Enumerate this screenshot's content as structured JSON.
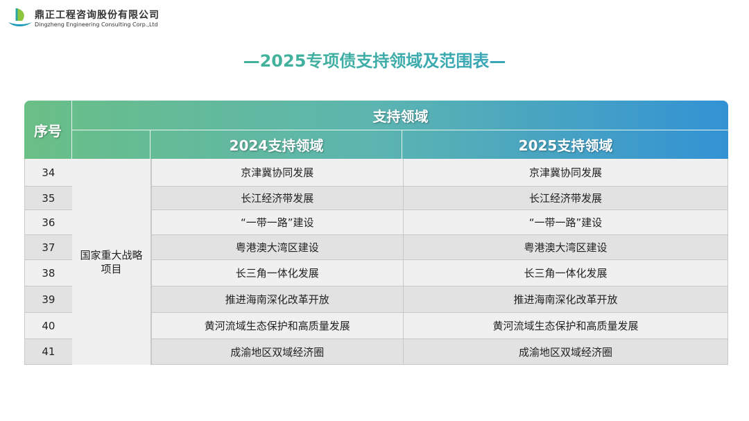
{
  "logo": {
    "name_cn": "鼎正工程咨询股份有限公司",
    "name_en": "Dingzheng Engineering Consulting Corp.,Ltd"
  },
  "title": "—2025专项债支持领域及范围表—",
  "table": {
    "header": {
      "index": "序号",
      "group": "支持领域",
      "col2024": "2024支持领域",
      "col2025": "2025支持领域"
    },
    "category": "国家重大战略项目",
    "rows": [
      {
        "no": "34",
        "y2024": "京津冀协同发展",
        "y2025": "京津冀协同发展"
      },
      {
        "no": "35",
        "y2024": "长江经济带发展",
        "y2025": "长江经济带发展"
      },
      {
        "no": "36",
        "y2024": "“一带一路”建设",
        "y2025": "“一带一路”建设"
      },
      {
        "no": "37",
        "y2024": "粤港澳大湾区建设",
        "y2025": "粤港澳大湾区建设"
      },
      {
        "no": "38",
        "y2024": "长三角一体化发展",
        "y2025": "长三角一体化发展"
      },
      {
        "no": "39",
        "y2024": "推进海南深化改革开放",
        "y2025": "推进海南深化改革开放"
      },
      {
        "no": "40",
        "y2024": "黄河流域生态保护和高质量发展",
        "y2025": "黄河流域生态保护和高质量发展"
      },
      {
        "no": "41",
        "y2024": "成渝地区双域经济圈",
        "y2025": "成渝地区双域经济圈"
      }
    ]
  },
  "colors": {
    "title_start": "#4cbf7a",
    "title_end": "#2f9ad6",
    "row_light": "#f0f0f0",
    "row_dark": "#e2e2e2"
  }
}
